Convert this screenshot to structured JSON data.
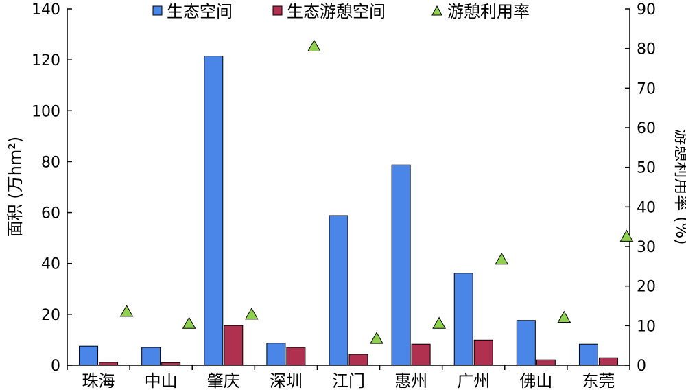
{
  "chart_data": {
    "type": "bar",
    "categories": [
      "珠海",
      "中山",
      "肇庆",
      "深圳",
      "江门",
      "惠州",
      "广州",
      "佛山",
      "东莞"
    ],
    "series": [
      {
        "name": "生态空间",
        "axis": "left",
        "kind": "bar",
        "color": "#4a86e8",
        "values": [
          7.5,
          7.0,
          121.5,
          8.7,
          58.8,
          78.7,
          36.2,
          17.6,
          8.3
        ]
      },
      {
        "name": "生态游憩空间",
        "axis": "left",
        "kind": "bar",
        "color": "#b0304f",
        "values": [
          1.1,
          1.0,
          15.6,
          7.0,
          4.3,
          8.3,
          9.9,
          2.1,
          2.9
        ]
      },
      {
        "name": "游憩利用率",
        "axis": "right",
        "kind": "marker",
        "color": "#8fd14f",
        "values": [
          13.5,
          10.5,
          12.8,
          80.5,
          6.7,
          10.5,
          26.7,
          12.0,
          32.5
        ]
      }
    ],
    "ylabel": "面积 (万hm²)",
    "y2label": "游憩利用率 (%)",
    "ylim": [
      0,
      140
    ],
    "y2lim": [
      0,
      90
    ],
    "yticks": [
      "0",
      "20",
      "40",
      "60",
      "80",
      "100",
      "120",
      "140"
    ],
    "y2ticks": [
      "0",
      "10",
      "20",
      "30",
      "40",
      "50",
      "60",
      "70",
      "80",
      "90"
    ],
    "legend": {
      "position": "top"
    },
    "grid": false
  }
}
